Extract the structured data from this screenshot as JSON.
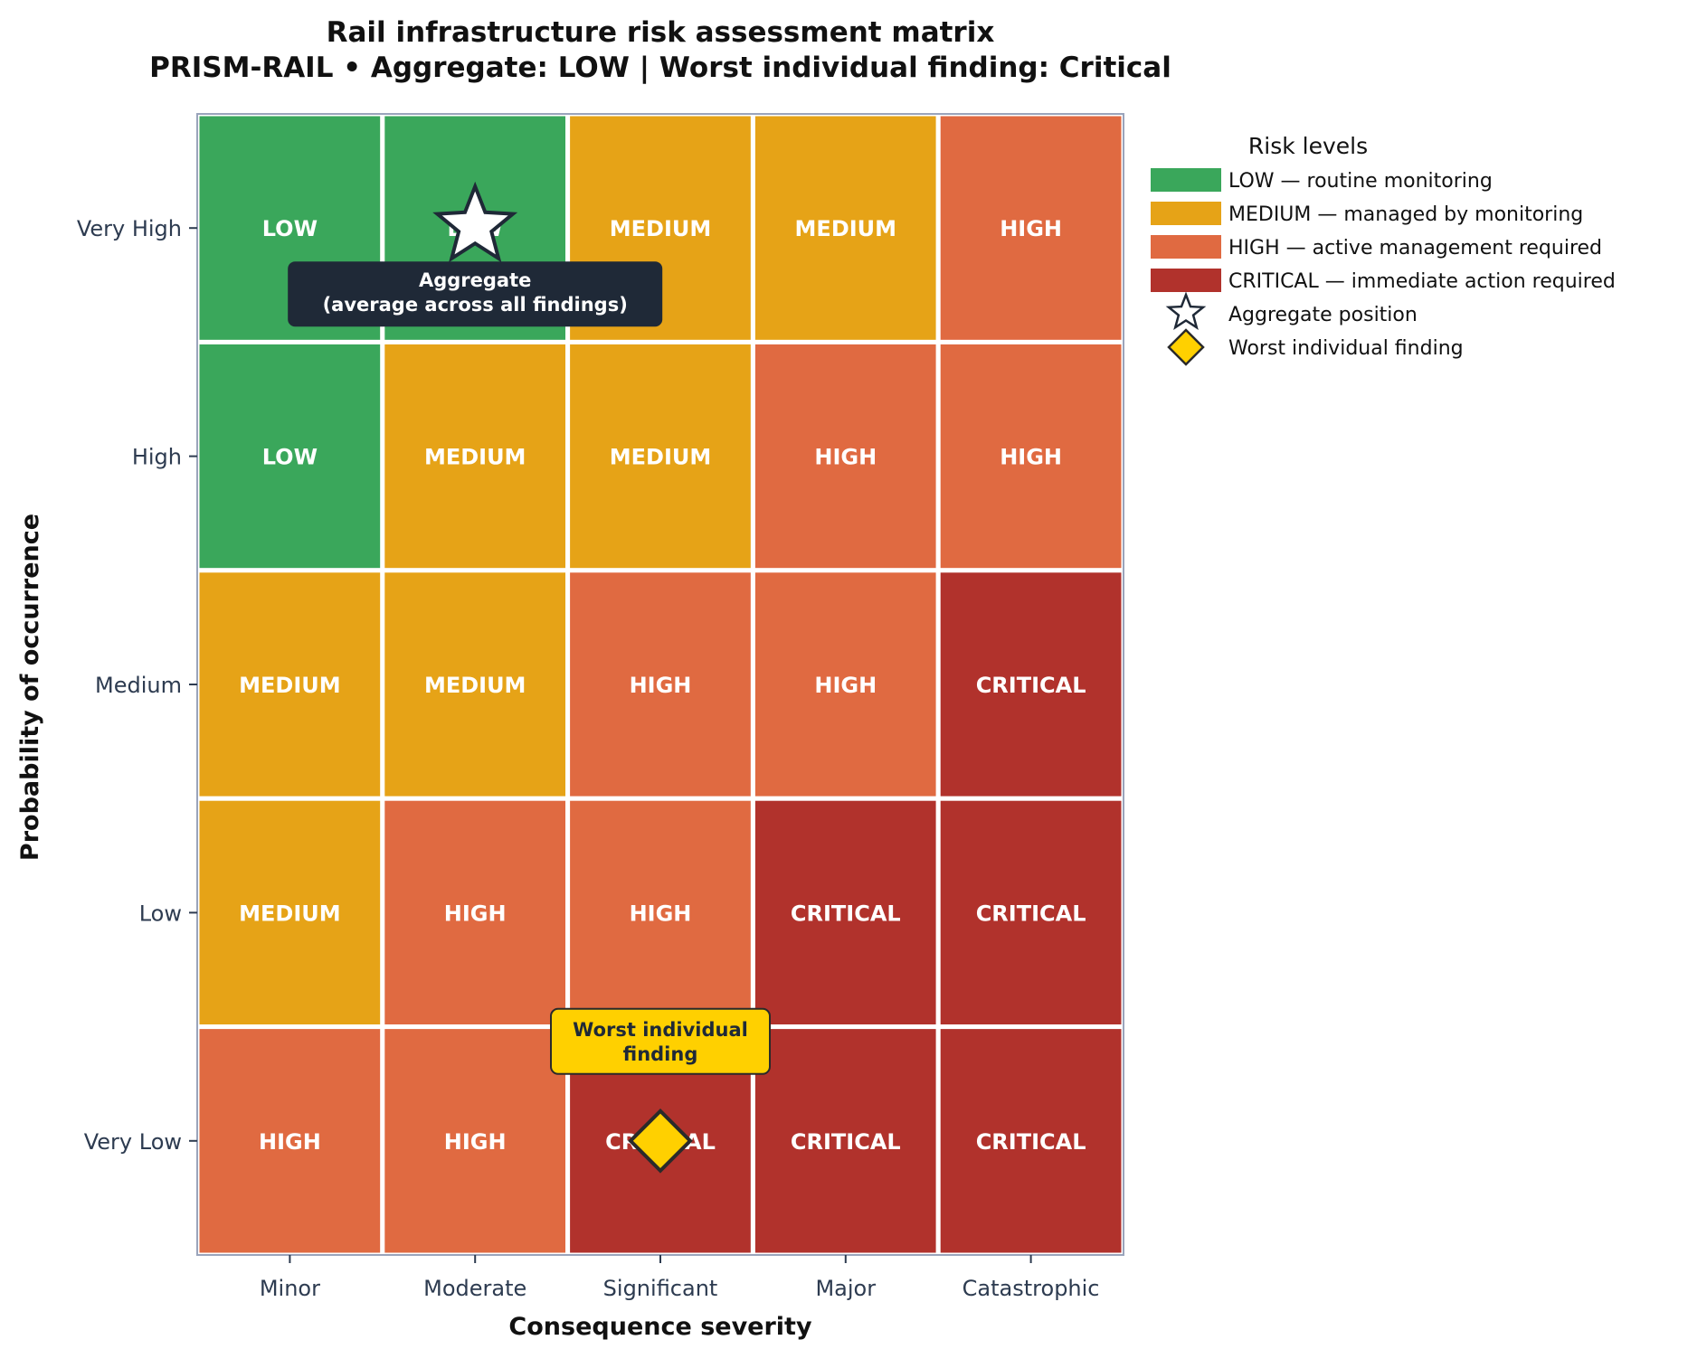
{
  "chart_data": {
    "type": "heatmap",
    "title_line1": "Rail infrastructure risk assessment matrix",
    "title_line2": "PRISM-RAIL  •  Aggregate: LOW   |   Worst individual finding: Critical",
    "xlabel": "Consequence severity",
    "ylabel": "Probability of occurrence",
    "x_categories": [
      "Minor",
      "Moderate",
      "Significant",
      "Major",
      "Catastrophic"
    ],
    "y_categories": [
      "Very High",
      "High",
      "Medium",
      "Low",
      "Very Low"
    ],
    "cells": [
      [
        "LOW",
        "LOW",
        "MEDIUM",
        "MEDIUM",
        "HIGH"
      ],
      [
        "LOW",
        "MEDIUM",
        "MEDIUM",
        "HIGH",
        "HIGH"
      ],
      [
        "MEDIUM",
        "MEDIUM",
        "HIGH",
        "HIGH",
        "CRITICAL"
      ],
      [
        "MEDIUM",
        "HIGH",
        "HIGH",
        "CRITICAL",
        "CRITICAL"
      ],
      [
        "HIGH",
        "HIGH",
        "CRITICAL",
        "CRITICAL",
        "CRITICAL"
      ]
    ],
    "level_colors": {
      "LOW": "#3aa75b",
      "MEDIUM": "#e6a317",
      "HIGH": "#e06a41",
      "CRITICAL": "#b1322c"
    },
    "markers": [
      {
        "kind": "star",
        "x": "Moderate",
        "y": "Very High",
        "fill": "#ffffff",
        "stroke": "#1f2937",
        "annotation": [
          "Aggregate",
          "(average across all findings)"
        ],
        "annotation_bg": "#1f2937"
      },
      {
        "kind": "diamond",
        "x": "Significant",
        "y": "Very Low",
        "fill": "#ffd000",
        "stroke": "#2a2a2a",
        "annotation": [
          "Worst individual",
          "finding"
        ],
        "annotation_bg": "#ffd000"
      }
    ],
    "legend": {
      "title": "Risk levels",
      "placement": "upper-right outside",
      "entries": [
        {
          "type": "patch",
          "level": "LOW",
          "label": "LOW — routine monitoring"
        },
        {
          "type": "patch",
          "level": "MEDIUM",
          "label": "MEDIUM — managed by monitoring"
        },
        {
          "type": "patch",
          "level": "HIGH",
          "label": "HIGH — active management required"
        },
        {
          "type": "patch",
          "level": "CRITICAL",
          "label": "CRITICAL — immediate action required"
        },
        {
          "type": "star",
          "label": "Aggregate position"
        },
        {
          "type": "diamond",
          "label": "Worst individual finding"
        }
      ]
    },
    "grid": false
  }
}
